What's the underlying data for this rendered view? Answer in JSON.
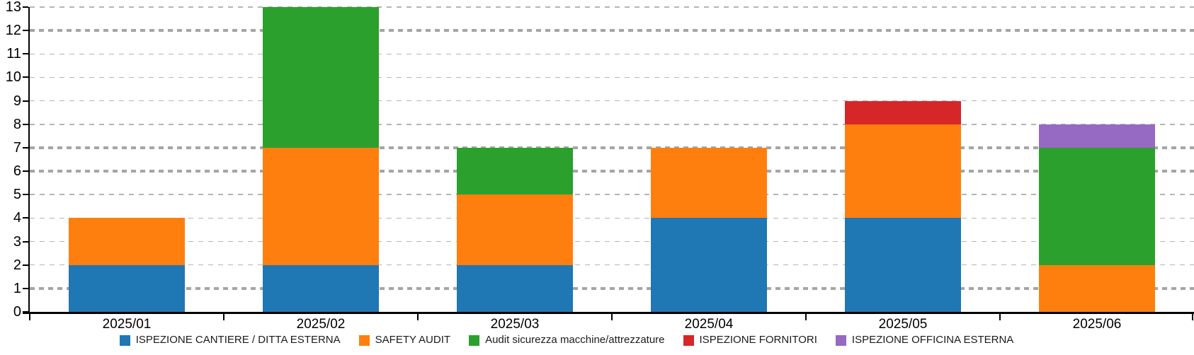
{
  "chart_data": {
    "type": "bar",
    "stacked": true,
    "title": "",
    "xlabel": "",
    "ylabel": "",
    "categories": [
      "2025/01",
      "2025/02",
      "2025/03",
      "2025/04",
      "2025/05",
      "2025/06"
    ],
    "series": [
      {
        "name": "ISPEZIONE CANTIERE / DITTA ESTERNA",
        "color": "#1F77B4",
        "values": [
          2,
          2,
          2,
          4,
          4,
          0
        ]
      },
      {
        "name": "SAFETY AUDIT",
        "color": "#FF7F0E",
        "values": [
          2,
          5,
          3,
          3,
          4,
          2
        ]
      },
      {
        "name": "Audit sicurezza macchine/attrezzature",
        "color": "#2CA02C",
        "values": [
          0,
          6,
          2,
          0,
          0,
          5
        ]
      },
      {
        "name": "ISPEZIONE FORNITORI",
        "color": "#D62728",
        "values": [
          0,
          0,
          0,
          0,
          1,
          0
        ]
      },
      {
        "name": "ISPEZIONE OFFICINA ESTERNA",
        "color": "#9669C3",
        "values": [
          0,
          0,
          0,
          0,
          0,
          1
        ]
      }
    ],
    "totals": [
      4,
      13,
      7,
      7,
      9,
      8
    ],
    "ylim": [
      0,
      13
    ],
    "ytick_step": 1,
    "ytick_labels": [
      "0",
      "1",
      "2",
      "3",
      "4",
      "5",
      "6",
      "7",
      "8",
      "9",
      "10",
      "11",
      "12",
      "13"
    ],
    "grid": "horizontal-dashed",
    "heavy_gridlines_at": [
      1,
      6,
      7,
      12
    ],
    "legend_position": "bottom-center",
    "axis_color": "#000000",
    "gridline_color": "#B4B4B4",
    "heavy_gridline_color": "#A5A5A5"
  }
}
